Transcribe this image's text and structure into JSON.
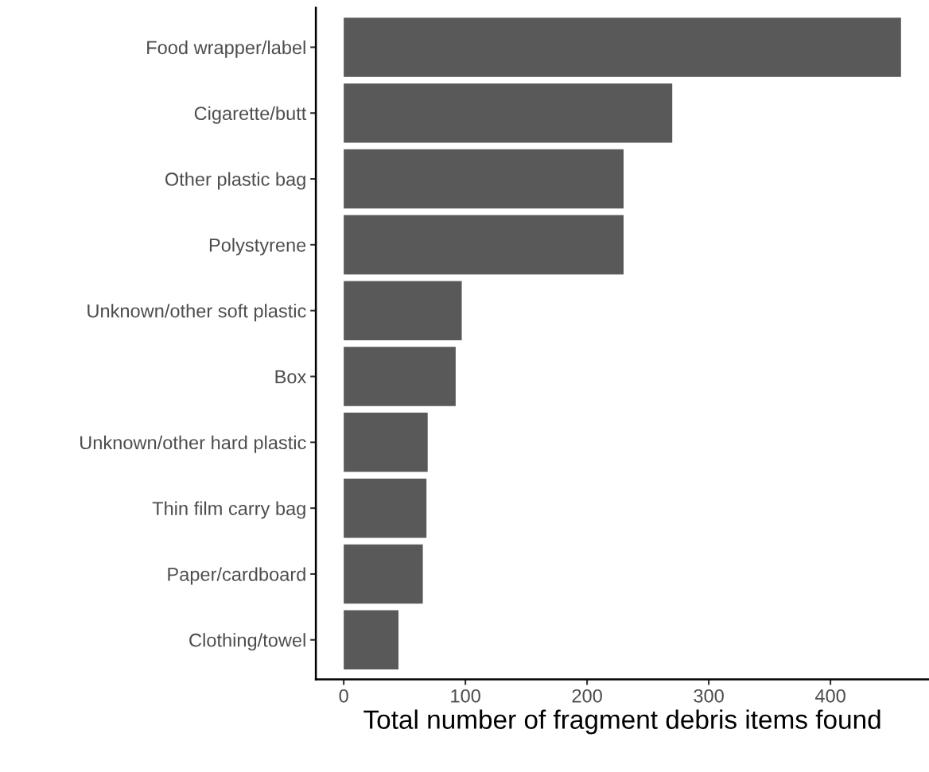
{
  "chart_data": {
    "type": "bar",
    "orientation": "horizontal",
    "xlabel": "Total number of fragment debris items found",
    "categories": [
      "Food wrapper/label",
      "Cigarette/butt",
      "Other plastic bag",
      "Polystyrene",
      "Unknown/other soft plastic",
      "Box",
      "Unknown/other hard plastic",
      "Thin film carry bag",
      "Paper/cardboard",
      "Clothing/towel"
    ],
    "values": [
      458,
      270,
      230,
      230,
      97,
      92,
      69,
      68,
      65,
      45
    ],
    "color": "#595959",
    "xlim": [
      -22.9,
      481
    ],
    "xticks": [
      0,
      100,
      200,
      300,
      400
    ],
    "grid": false,
    "legend": false
  }
}
